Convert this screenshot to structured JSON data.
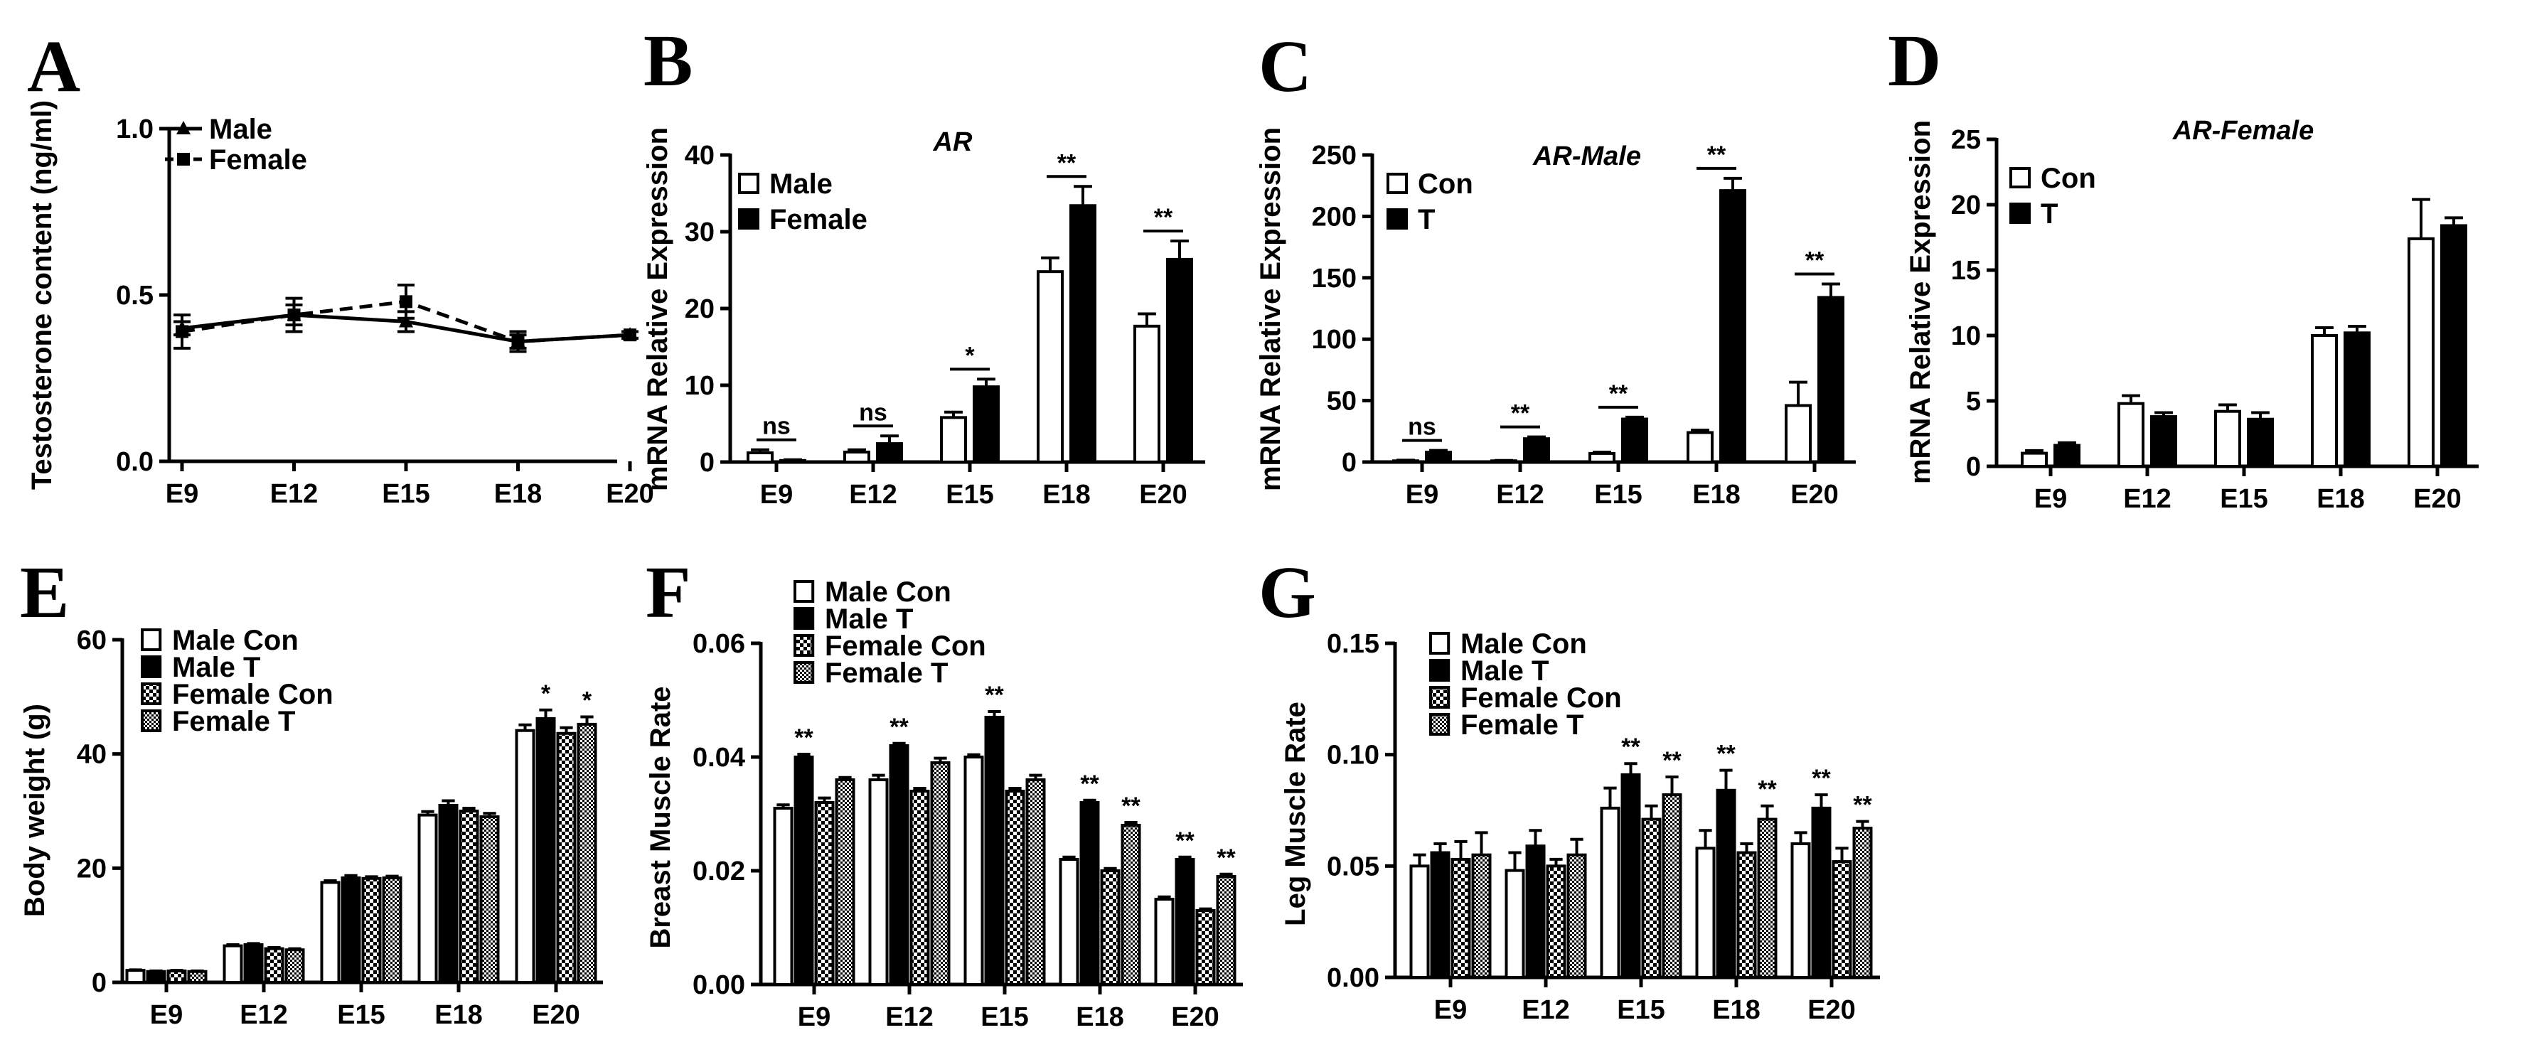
{
  "figure_labels": [
    "A",
    "B",
    "C",
    "D",
    "E",
    "F",
    "G"
  ],
  "colors": {
    "ink": "#000000",
    "white": "#ffffff",
    "grey": "#9a9a9a"
  },
  "chart_data": [
    {
      "id": "A",
      "type": "line",
      "title": "",
      "ylabel": "Testosterone content (ng/ml)",
      "categories": [
        "E9",
        "E12",
        "E15",
        "E18",
        "E20"
      ],
      "ylim": [
        0,
        1.0
      ],
      "yticks": [
        0.0,
        0.5,
        1.0
      ],
      "ytick_labels": [
        "0.0",
        "0.5",
        "1.0"
      ],
      "series": [
        {
          "name": "Male",
          "marker": "triangle",
          "dash": false,
          "values": [
            0.4,
            0.44,
            0.42,
            0.36,
            0.38
          ],
          "errors": [
            0.02,
            0.03,
            0.03,
            0.02,
            0.01
          ]
        },
        {
          "name": "Female",
          "marker": "square",
          "dash": true,
          "values": [
            0.39,
            0.44,
            0.48,
            0.36,
            0.38
          ],
          "errors": [
            0.05,
            0.05,
            0.05,
            0.03,
            0.01
          ]
        }
      ],
      "significance": []
    },
    {
      "id": "B",
      "type": "bar",
      "title": "AR",
      "ylabel": "mRNA Relative Expression",
      "categories": [
        "E9",
        "E12",
        "E15",
        "E18",
        "E20"
      ],
      "ylim": [
        0,
        40
      ],
      "yticks": [
        0,
        10,
        20,
        30,
        40
      ],
      "ytick_labels": [
        "0",
        "10",
        "20",
        "30",
        "40"
      ],
      "series": [
        {
          "name": "Male",
          "fill": "white",
          "values": [
            1.2,
            1.3,
            5.8,
            24.8,
            17.7
          ],
          "errors": [
            0.4,
            0.3,
            0.7,
            1.8,
            1.6
          ]
        },
        {
          "name": "Female",
          "fill": "black",
          "values": [
            0.2,
            2.4,
            9.8,
            33.4,
            26.4
          ],
          "errors": [
            0.1,
            1.0,
            1.0,
            2.5,
            2.4
          ]
        }
      ],
      "significance": [
        {
          "category": "E9",
          "label": "ns"
        },
        {
          "category": "E12",
          "label": "ns"
        },
        {
          "category": "E15",
          "label": "*"
        },
        {
          "category": "E18",
          "label": "**"
        },
        {
          "category": "E20",
          "label": "**"
        }
      ]
    },
    {
      "id": "C",
      "type": "bar",
      "title": "AR-Male",
      "ylabel": "mRNA Relative Expression",
      "categories": [
        "E9",
        "E12",
        "E15",
        "E18",
        "E20"
      ],
      "ylim": [
        0,
        250
      ],
      "yticks": [
        0,
        50,
        100,
        150,
        200,
        250
      ],
      "ytick_labels": [
        "0",
        "50",
        "100",
        "150",
        "200",
        "250"
      ],
      "series": [
        {
          "name": "Con",
          "fill": "white",
          "values": [
            1,
            1,
            7,
            24,
            46
          ],
          "errors": [
            0.5,
            0.3,
            1,
            2,
            19
          ]
        },
        {
          "name": "T",
          "fill": "black",
          "values": [
            8,
            19,
            35,
            221,
            134
          ],
          "errors": [
            1.5,
            1.5,
            1.5,
            10,
            11
          ]
        }
      ],
      "significance": [
        {
          "category": "E9",
          "label": "ns"
        },
        {
          "category": "E12",
          "label": "**"
        },
        {
          "category": "E15",
          "label": "**"
        },
        {
          "category": "E18",
          "label": "**"
        },
        {
          "category": "E20",
          "label": "**"
        }
      ]
    },
    {
      "id": "D",
      "type": "bar",
      "title": "AR-Female",
      "ylabel": "mRNA Relative Expression",
      "categories": [
        "E9",
        "E12",
        "E15",
        "E18",
        "E20"
      ],
      "ylim": [
        0,
        25
      ],
      "yticks": [
        0,
        5,
        10,
        15,
        20,
        25
      ],
      "ytick_labels": [
        "0",
        "5",
        "10",
        "15",
        "20",
        "25"
      ],
      "series": [
        {
          "name": "Con",
          "fill": "white",
          "values": [
            1.0,
            4.8,
            4.2,
            10.0,
            17.4
          ],
          "errors": [
            0.2,
            0.6,
            0.5,
            0.6,
            3.0
          ]
        },
        {
          "name": "T",
          "fill": "black",
          "values": [
            1.6,
            3.8,
            3.6,
            10.2,
            18.4
          ],
          "errors": [
            0.2,
            0.3,
            0.5,
            0.5,
            0.6
          ]
        }
      ],
      "significance": []
    },
    {
      "id": "E",
      "type": "bar",
      "title": "",
      "ylabel": "Body weight (g)",
      "categories": [
        "E9",
        "E12",
        "E15",
        "E18",
        "E20"
      ],
      "ylim": [
        0,
        60
      ],
      "yticks": [
        0,
        20,
        40,
        60
      ],
      "ytick_labels": [
        "0",
        "20",
        "40",
        "60"
      ],
      "series": [
        {
          "name": "Male Con",
          "fill": "white",
          "values": [
            2.1,
            6.4,
            17.5,
            29.3,
            44.1
          ],
          "errors": [
            0.1,
            0.2,
            0.3,
            0.6,
            1.0
          ]
        },
        {
          "name": "Male T",
          "fill": "black",
          "values": [
            1.9,
            6.6,
            18.3,
            31.0,
            46.2
          ],
          "errors": [
            0.1,
            0.2,
            0.4,
            0.8,
            1.5
          ]
        },
        {
          "name": "Female Con",
          "fill": "check",
          "values": [
            2.0,
            5.9,
            18.2,
            30.0,
            43.6
          ],
          "errors": [
            0.1,
            0.2,
            0.3,
            0.5,
            1.0
          ]
        },
        {
          "name": "Female T",
          "fill": "check",
          "values": [
            1.9,
            5.7,
            18.3,
            29.0,
            45.2
          ],
          "errors": [
            0.1,
            0.2,
            0.3,
            0.6,
            1.3
          ]
        }
      ],
      "significance": [
        {
          "category": "E20",
          "series": "Male T",
          "label": "*"
        },
        {
          "category": "E20",
          "series": "Female T",
          "label": "*"
        }
      ]
    },
    {
      "id": "F",
      "type": "bar",
      "title": "",
      "ylabel": "Breast Muscle Rate",
      "categories": [
        "E9",
        "E12",
        "E15",
        "E18",
        "E20"
      ],
      "ylim": [
        0,
        0.06
      ],
      "yticks": [
        0,
        0.02,
        0.04,
        0.06
      ],
      "ytick_labels": [
        "0.00",
        "0.02",
        "0.04",
        "0.06"
      ],
      "series": [
        {
          "name": "Male Con",
          "fill": "white",
          "values": [
            0.031,
            0.036,
            0.04,
            0.022,
            0.015
          ],
          "errors": [
            0.0006,
            0.0008,
            0.0004,
            0.0004,
            0.0004
          ]
        },
        {
          "name": "Male T",
          "fill": "black",
          "values": [
            0.04,
            0.042,
            0.047,
            0.032,
            0.022
          ],
          "errors": [
            0.0005,
            0.0004,
            0.001,
            0.0004,
            0.0004
          ]
        },
        {
          "name": "Female Con",
          "fill": "check",
          "values": [
            0.032,
            0.034,
            0.034,
            0.02,
            0.013
          ],
          "errors": [
            0.0008,
            0.0005,
            0.0005,
            0.0004,
            0.0003
          ]
        },
        {
          "name": "Female T",
          "fill": "check",
          "values": [
            0.036,
            0.039,
            0.036,
            0.028,
            0.019
          ],
          "errors": [
            0.0004,
            0.0008,
            0.0008,
            0.0005,
            0.0004
          ]
        }
      ],
      "significance": [
        {
          "category": "E9",
          "series": "Male T",
          "label": "**"
        },
        {
          "category": "E12",
          "series": "Male T",
          "label": "**"
        },
        {
          "category": "E15",
          "series": "Male T",
          "label": "**"
        },
        {
          "category": "E18",
          "series": "Male T",
          "label": "**"
        },
        {
          "category": "E18",
          "series": "Female T",
          "label": "**"
        },
        {
          "category": "E20",
          "series": "Male T",
          "label": "**"
        },
        {
          "category": "E20",
          "series": "Female T",
          "label": "**"
        }
      ]
    },
    {
      "id": "G",
      "type": "bar",
      "title": "",
      "ylabel": "Leg Muscle Rate",
      "categories": [
        "E9",
        "E12",
        "E15",
        "E18",
        "E20"
      ],
      "ylim": [
        0,
        0.15
      ],
      "yticks": [
        0,
        0.05,
        0.1,
        0.15
      ],
      "ytick_labels": [
        "0.00",
        "0.05",
        "0.10",
        "0.15"
      ],
      "series": [
        {
          "name": "Male Con",
          "fill": "white",
          "values": [
            0.05,
            0.048,
            0.076,
            0.058,
            0.06
          ],
          "errors": [
            0.005,
            0.008,
            0.009,
            0.008,
            0.005
          ]
        },
        {
          "name": "Male T",
          "fill": "black",
          "values": [
            0.056,
            0.059,
            0.091,
            0.084,
            0.076
          ],
          "errors": [
            0.004,
            0.007,
            0.005,
            0.009,
            0.006
          ]
        },
        {
          "name": "Female Con",
          "fill": "check",
          "values": [
            0.053,
            0.05,
            0.071,
            0.056,
            0.052
          ],
          "errors": [
            0.008,
            0.003,
            0.006,
            0.004,
            0.006
          ]
        },
        {
          "name": "Female T",
          "fill": "check",
          "values": [
            0.055,
            0.055,
            0.082,
            0.071,
            0.067
          ],
          "errors": [
            0.01,
            0.007,
            0.008,
            0.006,
            0.003
          ]
        }
      ],
      "significance": [
        {
          "category": "E15",
          "series": "Male T",
          "label": "**"
        },
        {
          "category": "E15",
          "series": "Female T",
          "label": "**"
        },
        {
          "category": "E18",
          "series": "Male T",
          "label": "**"
        },
        {
          "category": "E18",
          "series": "Female T",
          "label": "**"
        },
        {
          "category": "E20",
          "series": "Male T",
          "label": "**"
        },
        {
          "category": "E20",
          "series": "Female T",
          "label": "**"
        }
      ]
    }
  ]
}
